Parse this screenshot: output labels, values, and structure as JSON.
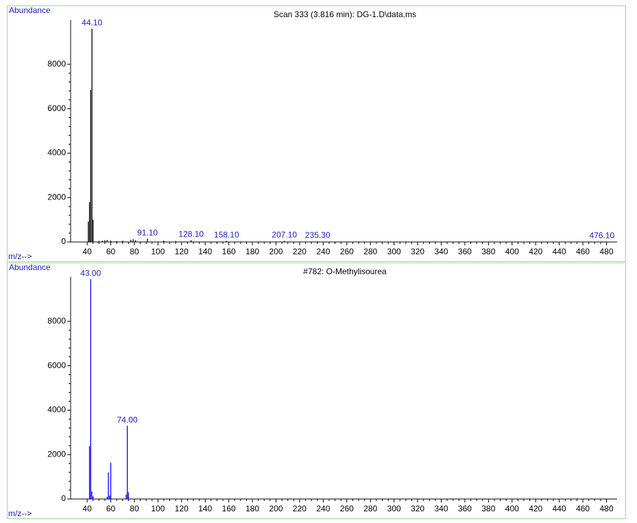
{
  "chart_data": [
    {
      "type": "bar",
      "title": "Scan 333 (3.816 min): DG-1.D\\data.ms",
      "ylabel": "Abundance",
      "xlabel": "m/z-->",
      "x": [
        41,
        42,
        43,
        44.1,
        45,
        50,
        53,
        55,
        57,
        60,
        65,
        70,
        77,
        79,
        81,
        91.1,
        105,
        115,
        128.1,
        158.1,
        207.1,
        235.3,
        476.1
      ],
      "values": [
        920,
        1790,
        6850,
        9600,
        1000,
        50,
        60,
        80,
        90,
        60,
        40,
        60,
        100,
        120,
        80,
        150,
        60,
        40,
        80,
        50,
        50,
        30,
        20
      ],
      "color": "#000000",
      "annotations": [
        {
          "value": 44.1,
          "label": "44.10"
        },
        {
          "value": 91.1,
          "label": "91.10"
        },
        {
          "value": 128.1,
          "label": "128.10"
        },
        {
          "value": 158.1,
          "label": "158.10"
        },
        {
          "value": 207.1,
          "label": "207.10"
        },
        {
          "value": 235.3,
          "label": "235.30"
        },
        {
          "value": 476.1,
          "label": "476.10"
        }
      ],
      "annotation_color": "#1a1acc",
      "xlim": [
        26,
        489
      ],
      "ylim": [
        0,
        10000
      ],
      "xticks": [
        40,
        60,
        80,
        100,
        120,
        140,
        160,
        180,
        200,
        220,
        240,
        260,
        280,
        300,
        320,
        340,
        360,
        380,
        400,
        420,
        440,
        460,
        480
      ],
      "yticks": [
        0,
        2000,
        4000,
        6000,
        8000
      ]
    },
    {
      "type": "bar",
      "title": "#782: O-Methylisourea",
      "ylabel": "Abundance",
      "xlabel": "m/z-->",
      "x": [
        42,
        43,
        44,
        45,
        57,
        58,
        59,
        60,
        73,
        74,
        75
      ],
      "values": [
        2380,
        9900,
        340,
        120,
        100,
        1200,
        150,
        1640,
        200,
        3300,
        300
      ],
      "color": "#0000ff",
      "annotations": [
        {
          "value": 43,
          "label": "43.00"
        },
        {
          "value": 74,
          "label": "74.00"
        }
      ],
      "annotation_color": "#1a1acc",
      "xlim": [
        26,
        489
      ],
      "ylim": [
        0,
        10000
      ],
      "xticks": [
        40,
        60,
        80,
        100,
        120,
        140,
        160,
        180,
        200,
        220,
        240,
        260,
        280,
        300,
        320,
        340,
        360,
        380,
        400,
        420,
        440,
        460,
        480
      ],
      "yticks": [
        0,
        2000,
        4000,
        6000,
        8000
      ]
    }
  ]
}
